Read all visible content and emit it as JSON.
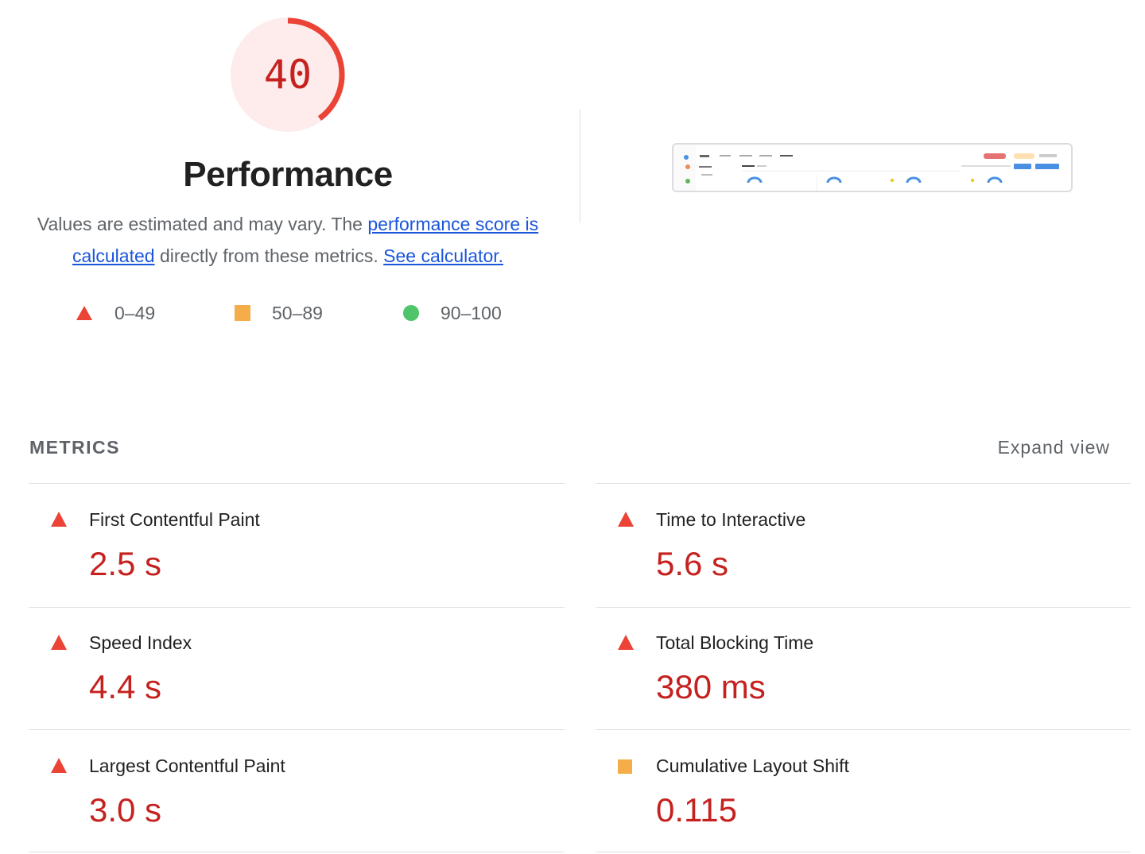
{
  "score": {
    "value": "40",
    "fraction": 0.4,
    "ring_color": "#eb4335",
    "fill_color": "#fdeceb",
    "text_color": "#c5221f"
  },
  "category_title": "Performance",
  "description": {
    "text_1": "Values are estimated and may vary. The ",
    "link_1": "performance score is calculated",
    "text_2": " directly from these metrics. ",
    "link_2": "See calculator."
  },
  "legend": [
    {
      "range": "0–49",
      "shape": "triangle-icon",
      "color": "#eb4335"
    },
    {
      "range": "50–89",
      "shape": "square-icon",
      "color": "#f4ad48"
    },
    {
      "range": "90–100",
      "shape": "circle-icon",
      "color": "#4ec46b"
    }
  ],
  "metrics_header": {
    "title": "METRICS",
    "expand_label": "Expand view"
  },
  "metrics": [
    {
      "name": "First Contentful Paint",
      "value": "2.5 s",
      "rating": "fail"
    },
    {
      "name": "Time to Interactive",
      "value": "5.6 s",
      "rating": "fail"
    },
    {
      "name": "Speed Index",
      "value": "4.4 s",
      "rating": "fail"
    },
    {
      "name": "Total Blocking Time",
      "value": "380 ms",
      "rating": "fail"
    },
    {
      "name": "Largest Contentful Paint",
      "value": "3.0 s",
      "rating": "fail"
    },
    {
      "name": "Cumulative Layout Shift",
      "value": "0.115",
      "rating": "average"
    }
  ]
}
